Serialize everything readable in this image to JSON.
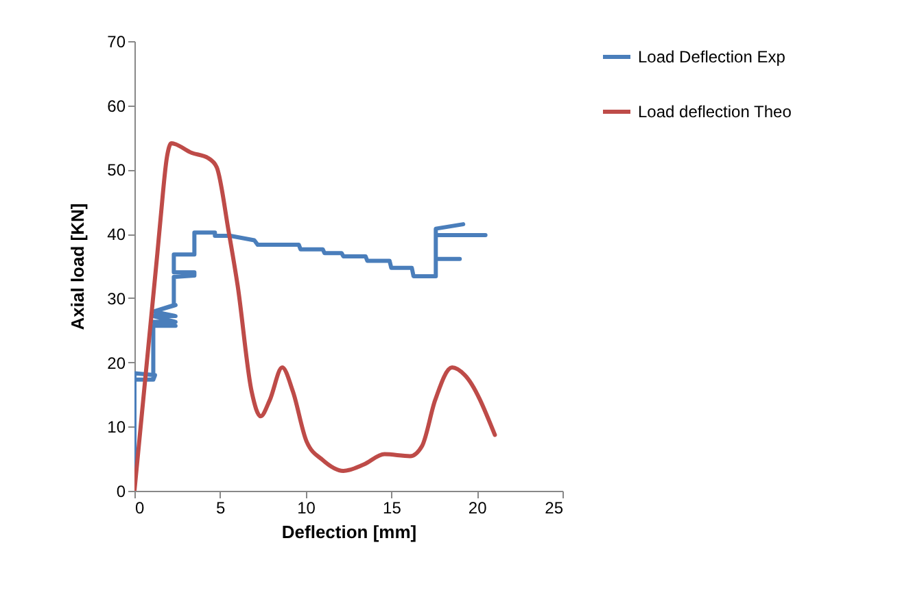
{
  "chart_data": {
    "type": "line",
    "xlabel": "Deflection [mm]",
    "ylabel": "Axial load [KN]",
    "xlim": [
      0,
      25
    ],
    "xticks": [
      0,
      5,
      10,
      15,
      20,
      25
    ],
    "ylim": [
      0,
      70
    ],
    "yticks": [
      0,
      10,
      20,
      30,
      40,
      50,
      60,
      70
    ],
    "grid": false,
    "legend": "right",
    "marker": "none",
    "line_style": "solid",
    "series": [
      {
        "name": "Load Deflection Exp",
        "color": "#4a7ebb",
        "x": [
          0,
          0,
          0,
          1.2,
          1.1,
          0,
          1.1,
          1.1,
          2.4,
          1.1,
          2.4,
          1.1,
          2.4,
          1.1,
          2.4,
          1.1,
          2.3,
          2.3,
          3.5,
          3.5,
          2.3,
          2.3,
          3.5,
          3.5,
          4.7,
          4.7,
          5.6,
          7,
          7.2,
          9.6,
          9.7,
          11,
          11.1,
          12.1,
          12.2,
          13.5,
          13.6,
          14.9,
          15,
          16.2,
          16.3,
          17.6,
          17.6,
          19,
          17.6,
          17.6,
          20.5,
          17.6,
          17.6,
          19.2
        ],
        "values": [
          0,
          17.3,
          18.3,
          18,
          17.3,
          17.3,
          17.3,
          25.7,
          25.7,
          26.3,
          26.3,
          27.2,
          27.2,
          27.9,
          28.9,
          27.9,
          28.9,
          33.3,
          33.5,
          34,
          34,
          36.8,
          36.8,
          40.2,
          40.2,
          39.7,
          39.7,
          39,
          38.3,
          38.3,
          37.6,
          37.6,
          37,
          37,
          36.5,
          36.5,
          35.8,
          35.8,
          34.7,
          34.7,
          33.4,
          33.4,
          36.1,
          36.1,
          36.1,
          39.8,
          39.8,
          39.8,
          40.8,
          41.5
        ]
      },
      {
        "name": "Load deflection Theo",
        "color": "#be4b48",
        "x": [
          0,
          1.34,
          1.53,
          1.9,
          2.15,
          3.35,
          4.3,
          4.8,
          5.5,
          6.03,
          6.84,
          7.37,
          7.9,
          8.63,
          9.25,
          10.05,
          10.99,
          12.2,
          13.4,
          14.6,
          16.1,
          16.8,
          17.56,
          18.55,
          19.3,
          21.05
        ],
        "values": [
          0,
          37,
          42.5,
          52,
          54.1,
          52.6,
          51.8,
          50.4,
          40.4,
          31.9,
          15.5,
          11.6,
          14.1,
          19.2,
          15.5,
          7.7,
          4.8,
          3.1,
          4.1,
          5.7,
          5.4,
          7,
          14.1,
          19.2,
          18,
          8.7
        ]
      }
    ]
  }
}
